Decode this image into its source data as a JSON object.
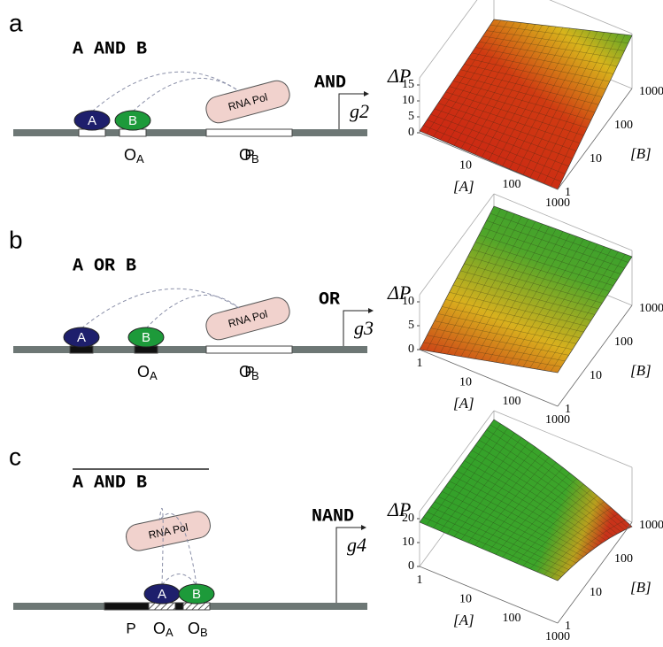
{
  "panels": [
    {
      "label": "a",
      "logic": "A AND B",
      "gate": "AND",
      "gene": "g2",
      "polymerase": "RNA Pol",
      "factors": [
        "A",
        "B"
      ],
      "operators": [
        {
          "main": "O",
          "sub": "A"
        },
        {
          "main": "O",
          "sub": "B"
        }
      ],
      "promoter": "P",
      "plot": {
        "zlabel": "ΔP",
        "zticks": [
          0,
          5,
          10,
          15
        ],
        "alabel": "[A]",
        "aticks": [
          10,
          100,
          1000
        ],
        "blabel": "[B]",
        "bticks": [
          1,
          10,
          100,
          1000
        ]
      }
    },
    {
      "label": "b",
      "logic": "A OR B",
      "gate": "OR",
      "gene": "g3",
      "polymerase": "RNA Pol",
      "factors": [
        "A",
        "B"
      ],
      "operators": [
        {
          "main": "O",
          "sub": "A"
        },
        {
          "main": "O",
          "sub": "B"
        }
      ],
      "promoter": "P",
      "plot": {
        "zlabel": "ΔP",
        "zticks": [
          0,
          5,
          10
        ],
        "alabel": "[A]",
        "aticks": [
          1,
          10,
          100,
          1000
        ],
        "blabel": "[B]",
        "bticks": [
          1,
          10,
          100,
          1000
        ]
      }
    },
    {
      "label": "c",
      "logic": "A AND B",
      "gate": "NAND",
      "gene": "g4",
      "polymerase": "RNA Pol",
      "factors": [
        "A",
        "B"
      ],
      "operators": [
        {
          "main": "O",
          "sub": "A"
        },
        {
          "main": "O",
          "sub": "B"
        }
      ],
      "promoter": "P",
      "plot": {
        "zlabel": "ΔP",
        "zticks": [
          0,
          10,
          20
        ],
        "alabel": "[A]",
        "aticks": [
          1,
          10,
          100,
          1000
        ],
        "blabel": "[B]",
        "bticks": [
          1,
          10,
          100,
          1000
        ]
      }
    }
  ]
}
